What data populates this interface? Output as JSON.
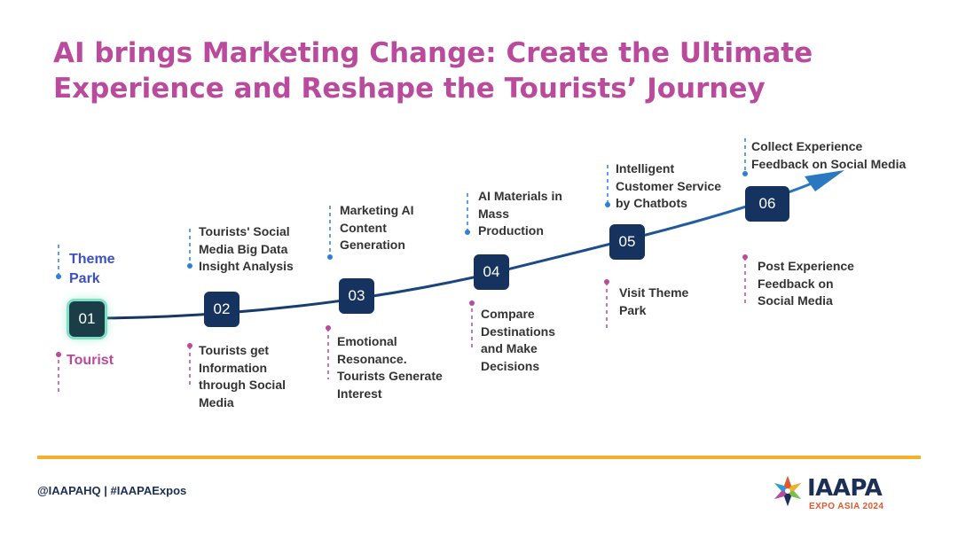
{
  "title": {
    "line1": "AI brings Marketing Change: Create the Ultimate",
    "line2": "Experience and Reshape the Tourists’ Journey"
  },
  "steps": [
    {
      "number": "01",
      "top": [
        "Theme",
        "Park"
      ],
      "bottom": [
        "Tourist"
      ]
    },
    {
      "number": "02",
      "top": [
        "Tourists' Social",
        "Media Big Data",
        "Insight Analysis"
      ],
      "bottom": [
        "Tourists get",
        "Information",
        "through Social",
        "Media"
      ]
    },
    {
      "number": "03",
      "top": [
        "Marketing AI",
        "Content",
        "Generation"
      ],
      "bottom": [
        "Emotional",
        "Resonance.",
        "Tourists Generate",
        "Interest"
      ]
    },
    {
      "number": "04",
      "top": [
        "AI Materials in",
        "Mass",
        "Production"
      ],
      "bottom": [
        "Compare",
        "Destinations",
        "and Make",
        "Decisions"
      ]
    },
    {
      "number": "05",
      "top": [
        "Intelligent",
        "Customer Service",
        "by Chatbots"
      ],
      "bottom": [
        "Visit Theme",
        "Park"
      ]
    },
    {
      "number": "06",
      "top": [
        "Collect Experience",
        "Feedback on Social Media"
      ],
      "bottom": [
        "Post Experience",
        "Feedback on",
        "Social Media"
      ]
    }
  ],
  "footer": {
    "handles": "@IAAPAHQ  |  #IAAPAExpos",
    "logo_word": "IAAPA",
    "logo_sub": "EXPO ASIA 2024"
  },
  "colors": {
    "title": "#b94a9c",
    "node": "#16335f",
    "curve": "#16335f",
    "blue_dot": "#2d7fd8",
    "pink_dot": "#b94a9c",
    "footer_line": "#f3b02a"
  }
}
